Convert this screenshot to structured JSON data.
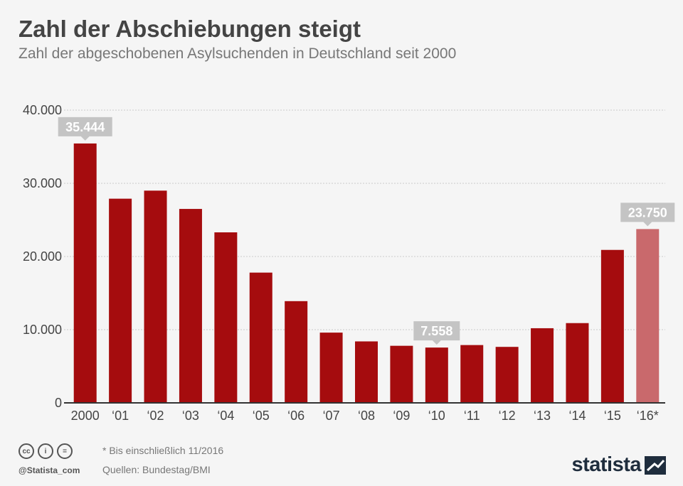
{
  "header": {
    "title": "Zahl der Abschiebungen steigt",
    "subtitle": "Zahl der abgeschobenen Asylsuchenden in Deutschland seit 2000"
  },
  "chart_data": {
    "type": "bar",
    "title": "Zahl der Abschiebungen steigt",
    "subtitle": "Zahl der abgeschobenen Asylsuchenden in Deutschland seit 2000",
    "xlabel": "",
    "ylabel": "",
    "categories": [
      "2000",
      "‘01",
      "‘02",
      "‘03",
      "‘04",
      "‘05",
      "‘06",
      "‘07",
      "‘08",
      "‘09",
      "‘10",
      "‘11",
      "‘12",
      "‘13",
      "‘14",
      "‘15",
      "‘16*"
    ],
    "values": [
      35444,
      27900,
      29000,
      26500,
      23300,
      17800,
      13900,
      9600,
      8400,
      7800,
      7558,
      7900,
      7650,
      10200,
      10900,
      20900,
      23750
    ],
    "ylim": [
      0,
      40000
    ],
    "yticks": [
      {
        "value": 0,
        "label": "0"
      },
      {
        "value": 10000,
        "label": "10.000"
      },
      {
        "value": 20000,
        "label": "20.000"
      },
      {
        "value": 30000,
        "label": "30.000"
      },
      {
        "value": 40000,
        "label": "40.000"
      }
    ],
    "annotations": [
      {
        "index": 0,
        "label": "35.444"
      },
      {
        "index": 10,
        "label": "7.558"
      },
      {
        "index": 16,
        "label": "23.750"
      }
    ],
    "highlight_index": 16,
    "colors": {
      "bar": "#a50c0e",
      "highlight": "#c9696c",
      "callout": "#c4c4c4",
      "grid": "#cccccc",
      "axis": "#333333",
      "text": "#444444"
    },
    "grid": true
  },
  "footer": {
    "cc_icons": [
      "cc",
      "i",
      "="
    ],
    "handle": "@Statista_com",
    "note": "* Bis einschließlich 11/2016",
    "sources": "Quellen: Bundestag/BMI",
    "logo": "statista"
  }
}
